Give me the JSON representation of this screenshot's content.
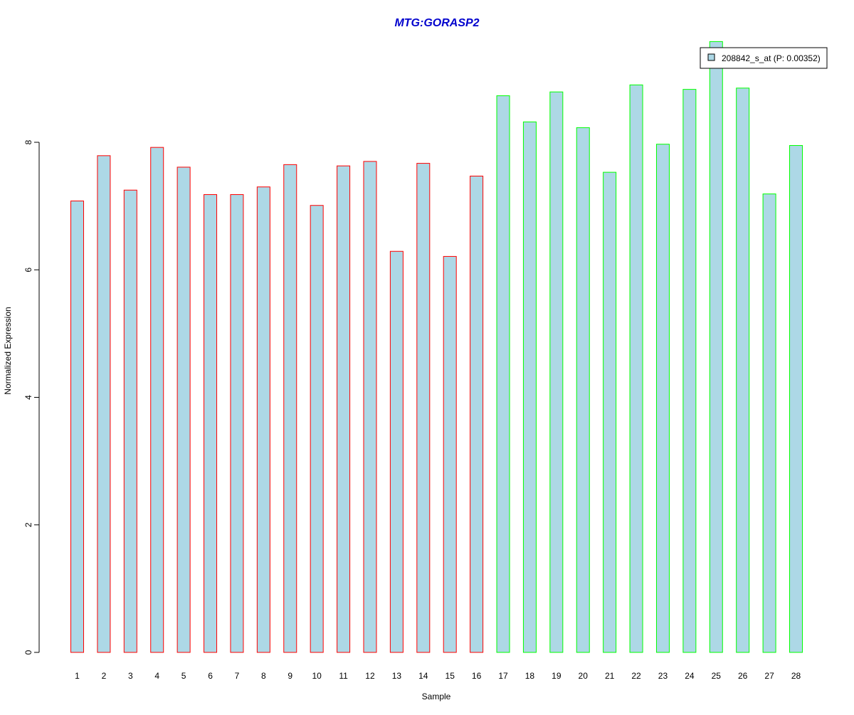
{
  "chart_data": {
    "type": "bar",
    "title": "MTG:GORASP2",
    "xlabel": "Sample",
    "ylabel": "Normalized Expression",
    "ylim": [
      0,
      9.6
    ],
    "yticks": [
      0,
      2,
      4,
      6,
      8
    ],
    "grid": false,
    "legend_position": "top-right",
    "categories": [
      "1",
      "2",
      "3",
      "4",
      "5",
      "6",
      "7",
      "8",
      "9",
      "10",
      "11",
      "12",
      "13",
      "14",
      "15",
      "16",
      "17",
      "18",
      "19",
      "20",
      "21",
      "22",
      "23",
      "24",
      "25",
      "26",
      "27",
      "28"
    ],
    "series": [
      {
        "name": "208842_s_at (P: 0.00352)",
        "values": [
          7.08,
          7.79,
          7.25,
          7.92,
          7.61,
          7.18,
          7.18,
          7.3,
          7.65,
          7.01,
          7.63,
          7.7,
          6.29,
          7.67,
          6.21,
          7.47,
          8.73,
          8.32,
          8.79,
          8.23,
          7.53,
          8.9,
          7.97,
          8.83,
          9.58,
          8.85,
          7.19,
          7.95
        ]
      }
    ],
    "groups": [
      1,
      1,
      1,
      1,
      1,
      1,
      1,
      1,
      1,
      1,
      1,
      1,
      1,
      1,
      1,
      1,
      2,
      2,
      2,
      2,
      2,
      2,
      2,
      2,
      2,
      2,
      2,
      2
    ],
    "colors": {
      "fill": "#add8e6",
      "group1_border": "#ff0000",
      "group2_border": "#00ff00",
      "title": "#0000cd",
      "axis": "#000000"
    }
  }
}
